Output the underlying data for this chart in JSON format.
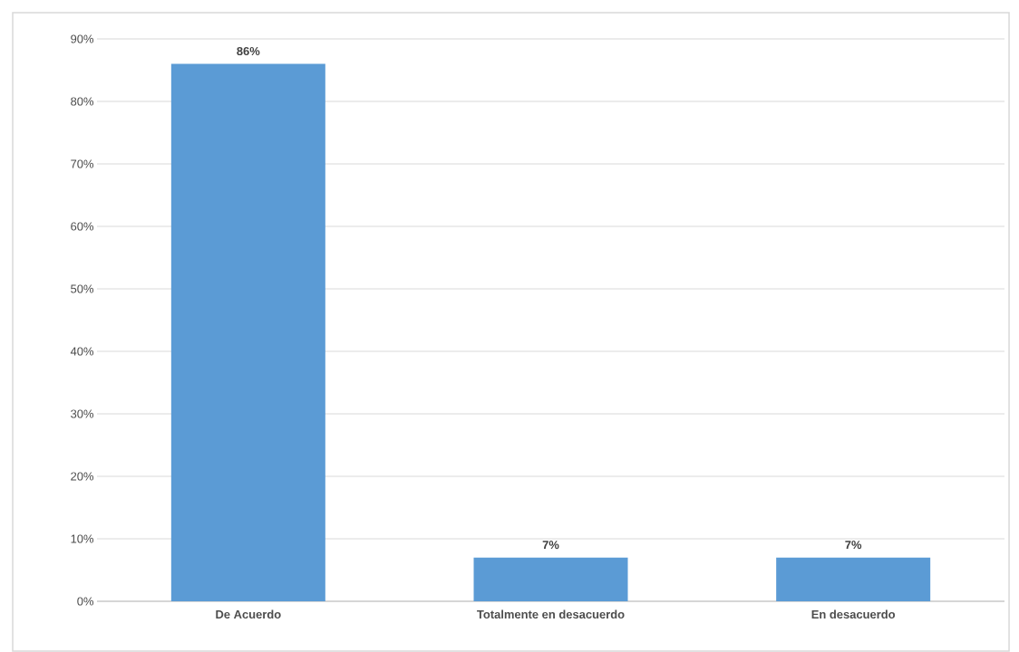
{
  "chart_data": {
    "type": "bar",
    "categories": [
      "De Acuerdo",
      "Totalmente en desacuerdo",
      "En desacuerdo"
    ],
    "values": [
      86,
      7,
      7
    ],
    "color": "#5b9bd5",
    "value_labels": [
      "86%",
      "7%",
      "7%"
    ],
    "ylim": [
      0,
      90
    ],
    "yticks": [
      {
        "value": 0,
        "label": "0%"
      },
      {
        "value": 10,
        "label": "10%"
      },
      {
        "value": 20,
        "label": "20%"
      },
      {
        "value": 30,
        "label": "30%"
      },
      {
        "value": 40,
        "label": "40%"
      },
      {
        "value": 50,
        "label": "50%"
      },
      {
        "value": 60,
        "label": "60%"
      },
      {
        "value": 70,
        "label": "70%"
      },
      {
        "value": 80,
        "label": "80%"
      },
      {
        "value": 90,
        "label": "90%"
      }
    ],
    "grid": "y"
  }
}
